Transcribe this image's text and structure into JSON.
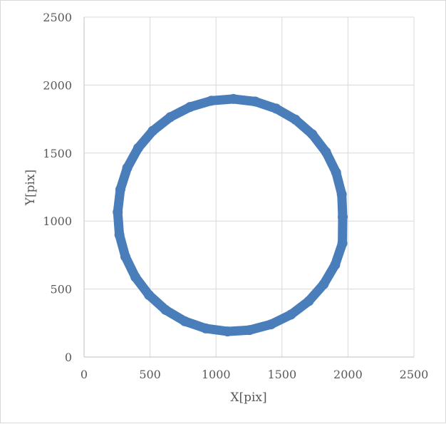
{
  "chart_data": {
    "type": "scatter",
    "title": "",
    "xlabel": "X[pix]",
    "ylabel": "Y[pix]",
    "xlim": [
      0,
      2500
    ],
    "ylim": [
      0,
      2500
    ],
    "xticks": [
      "0",
      "500",
      "1000",
      "1500",
      "2000",
      "2500"
    ],
    "yticks": [
      "0",
      "500",
      "1000",
      "1500",
      "2000",
      "2500"
    ],
    "grid": true,
    "legend": "none",
    "colors": {
      "series": "#4a7ebb",
      "grid": "#d9d9d9",
      "axis": "#bfbfbf",
      "text": "#595959"
    },
    "series": [
      {
        "values": [
          {
            "x": 1960,
            "y": 1030
          },
          {
            "x": 1953,
            "y": 1197
          },
          {
            "x": 1910,
            "y": 1358
          },
          {
            "x": 1834,
            "y": 1507
          },
          {
            "x": 1730,
            "y": 1638
          },
          {
            "x": 1602,
            "y": 1746
          },
          {
            "x": 1456,
            "y": 1827
          },
          {
            "x": 1297,
            "y": 1879
          },
          {
            "x": 1132,
            "y": 1898
          },
          {
            "x": 965,
            "y": 1885
          },
          {
            "x": 803,
            "y": 1839
          },
          {
            "x": 653,
            "y": 1764
          },
          {
            "x": 520,
            "y": 1663
          },
          {
            "x": 410,
            "y": 1537
          },
          {
            "x": 327,
            "y": 1391
          },
          {
            "x": 275,
            "y": 1232
          },
          {
            "x": 255,
            "y": 1066
          },
          {
            "x": 268,
            "y": 899
          },
          {
            "x": 313,
            "y": 738
          },
          {
            "x": 389,
            "y": 588
          },
          {
            "x": 492,
            "y": 456
          },
          {
            "x": 618,
            "y": 346
          },
          {
            "x": 763,
            "y": 263
          },
          {
            "x": 922,
            "y": 210
          },
          {
            "x": 1088,
            "y": 188
          },
          {
            "x": 1254,
            "y": 198
          },
          {
            "x": 1417,
            "y": 240
          },
          {
            "x": 1568,
            "y": 312
          },
          {
            "x": 1703,
            "y": 411
          },
          {
            "x": 1816,
            "y": 535
          },
          {
            "x": 1903,
            "y": 678
          },
          {
            "x": 1958,
            "y": 836
          }
        ]
      }
    ]
  }
}
